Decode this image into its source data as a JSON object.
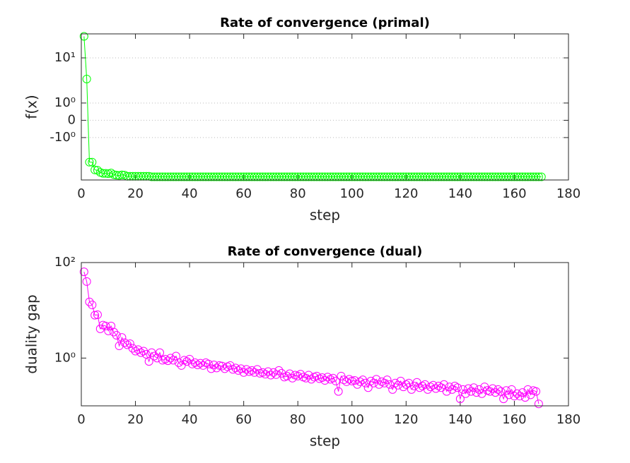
{
  "chart_data": [
    {
      "type": "line",
      "title": "Rate of convergence (primal)",
      "x_label": "step",
      "y_label": "f(x)",
      "x": [
        1,
        2,
        3,
        4,
        5,
        6,
        7,
        8,
        9,
        10,
        11,
        12,
        13,
        14,
        15,
        16,
        17,
        18,
        19,
        20,
        21,
        22,
        23,
        24,
        25,
        26,
        27,
        28,
        29,
        30,
        31,
        32,
        33,
        34,
        35,
        36,
        37,
        38,
        39,
        40,
        41,
        42,
        43,
        44,
        45,
        46,
        47,
        48,
        49,
        50,
        51,
        52,
        53,
        54,
        55,
        56,
        57,
        58,
        59,
        60,
        61,
        62,
        63,
        64,
        65,
        66,
        67,
        68,
        69,
        70,
        71,
        72,
        73,
        74,
        75,
        76,
        77,
        78,
        79,
        80,
        81,
        82,
        83,
        84,
        85,
        86,
        87,
        88,
        89,
        90,
        91,
        92,
        93,
        94,
        95,
        96,
        97,
        98,
        99,
        100,
        101,
        102,
        103,
        104,
        105,
        106,
        107,
        108,
        109,
        110,
        111,
        112,
        113,
        114,
        115,
        116,
        117,
        118,
        119,
        120,
        121,
        122,
        123,
        124,
        125,
        126,
        127,
        128,
        129,
        130,
        131,
        132,
        133,
        134,
        135,
        136,
        137,
        138,
        139,
        140,
        141,
        142,
        143,
        144,
        145,
        146,
        147,
        148,
        149,
        150,
        151,
        152,
        153,
        154,
        155,
        156,
        157,
        158,
        159,
        160,
        161,
        162,
        163,
        164,
        165,
        166,
        167,
        168,
        169,
        170
      ],
      "series": [
        {
          "color": "#00ff00",
          "values": [
            30,
            3.4,
            -3.5,
            -3.5,
            -5.2,
            -5.3,
            -5.9,
            -6.2,
            -6.2,
            -6.3,
            -6.1,
            -6.6,
            -6.8,
            -6.9,
            -6.7,
            -6.8,
            -7.2,
            -7.2,
            -7.2,
            -7.2,
            -7.2,
            -7.2,
            -7.2,
            -7.2,
            -7.2,
            -7.4,
            -7.4,
            -7.4,
            -7.4,
            -7.4,
            -7.4,
            -7.4,
            -7.4,
            -7.4,
            -7.4,
            -7.4,
            -7.4,
            -7.4,
            -7.4,
            -7.4,
            -7.4,
            -7.4,
            -7.4,
            -7.4,
            -7.4,
            -7.4,
            -7.4,
            -7.4,
            -7.4,
            -7.4,
            -7.4,
            -7.4,
            -7.4,
            -7.4,
            -7.4,
            -7.4,
            -7.4,
            -7.4,
            -7.4,
            -7.4,
            -7.4,
            -7.4,
            -7.4,
            -7.4,
            -7.4,
            -7.4,
            -7.4,
            -7.4,
            -7.4,
            -7.4,
            -7.4,
            -7.4,
            -7.4,
            -7.4,
            -7.4,
            -7.4,
            -7.4,
            -7.4,
            -7.4,
            -7.4,
            -7.4,
            -7.4,
            -7.4,
            -7.4,
            -7.4,
            -7.4,
            -7.4,
            -7.4,
            -7.4,
            -7.4,
            -7.4,
            -7.4,
            -7.4,
            -7.4,
            -7.4,
            -7.4,
            -7.4,
            -7.4,
            -7.4,
            -7.4,
            -7.4,
            -7.4,
            -7.4,
            -7.4,
            -7.4,
            -7.4,
            -7.4,
            -7.4,
            -7.4,
            -7.4,
            -7.4,
            -7.4,
            -7.4,
            -7.4,
            -7.4,
            -7.4,
            -7.4,
            -7.4,
            -7.4,
            -7.4,
            -7.4,
            -7.4,
            -7.4,
            -7.4,
            -7.4,
            -7.4,
            -7.4,
            -7.4,
            -7.4,
            -7.4,
            -7.4,
            -7.4,
            -7.4,
            -7.4,
            -7.4,
            -7.4,
            -7.4,
            -7.4,
            -7.4,
            -7.4,
            -7.4,
            -7.4,
            -7.4,
            -7.4,
            -7.4,
            -7.4,
            -7.4,
            -7.4,
            -7.4,
            -7.4,
            -7.4,
            -7.4,
            -7.4,
            -7.4,
            -7.4,
            -7.4,
            -7.4,
            -7.4,
            -7.4,
            -7.4,
            -7.4,
            -7.4,
            -7.4,
            -7.4,
            -7.4,
            -7.4,
            -7.4,
            -7.4,
            -7.4,
            -7.4
          ]
        }
      ],
      "xlim": [
        0,
        180
      ],
      "xticks": [
        0,
        20,
        40,
        60,
        80,
        100,
        120,
        140,
        160,
        180
      ],
      "yscale": "symlog",
      "ylim": [
        -8.7,
        34
      ],
      "yticks": [
        {
          "value": -1,
          "label": "-10⁰"
        },
        0,
        {
          "value": 1,
          "label": "10⁰"
        },
        {
          "value": 10,
          "label": "10¹"
        }
      ],
      "grid": true
    },
    {
      "type": "line",
      "title": "Rate of convergence (dual)",
      "x_label": "step",
      "y_label": "duality gap",
      "x": [
        1,
        2,
        3,
        4,
        5,
        6,
        7,
        8,
        9,
        10,
        11,
        12,
        13,
        14,
        15,
        16,
        17,
        18,
        19,
        20,
        21,
        22,
        23,
        24,
        25,
        26,
        27,
        28,
        29,
        30,
        31,
        32,
        33,
        34,
        35,
        36,
        37,
        38,
        39,
        40,
        41,
        42,
        43,
        44,
        45,
        46,
        47,
        48,
        49,
        50,
        51,
        52,
        53,
        54,
        55,
        56,
        57,
        58,
        59,
        60,
        61,
        62,
        63,
        64,
        65,
        66,
        67,
        68,
        69,
        70,
        71,
        72,
        73,
        74,
        75,
        76,
        77,
        78,
        79,
        80,
        81,
        82,
        83,
        84,
        85,
        86,
        87,
        88,
        89,
        90,
        91,
        92,
        93,
        94,
        95,
        96,
        97,
        98,
        99,
        100,
        101,
        102,
        103,
        104,
        105,
        106,
        107,
        108,
        109,
        110,
        111,
        112,
        113,
        114,
        115,
        116,
        117,
        118,
        119,
        120,
        121,
        122,
        123,
        124,
        125,
        126,
        127,
        128,
        129,
        130,
        131,
        132,
        133,
        134,
        135,
        136,
        137,
        138,
        139,
        140,
        141,
        142,
        143,
        144,
        145,
        146,
        147,
        148,
        149,
        150,
        151,
        152,
        153,
        154,
        155,
        156,
        157,
        158,
        159,
        160,
        161,
        162,
        163,
        164,
        165,
        166,
        167,
        168,
        169
      ],
      "series": [
        {
          "color": "#ff00ff",
          "values": [
            64,
            40,
            15,
            13,
            7.9,
            8.1,
            4.1,
            4.9,
            4.7,
            3.7,
            4.7,
            3.5,
            3.0,
            1.8,
            2.7,
            2.1,
            1.9,
            2.0,
            1.6,
            1.4,
            1.5,
            1.3,
            1.4,
            1.2,
            0.85,
            1.3,
            1.1,
            1.0,
            1.3,
            0.9,
            0.95,
            0.88,
            1.0,
            0.9,
            1.1,
            0.8,
            0.7,
            0.9,
            0.85,
            0.95,
            0.75,
            0.8,
            0.72,
            0.78,
            0.7,
            0.8,
            0.75,
            0.6,
            0.72,
            0.62,
            0.7,
            0.68,
            0.6,
            0.66,
            0.7,
            0.58,
            0.62,
            0.55,
            0.6,
            0.5,
            0.58,
            0.52,
            0.55,
            0.5,
            0.58,
            0.48,
            0.5,
            0.46,
            0.52,
            0.44,
            0.5,
            0.45,
            0.55,
            0.48,
            0.4,
            0.42,
            0.47,
            0.38,
            0.44,
            0.42,
            0.46,
            0.4,
            0.38,
            0.44,
            0.36,
            0.4,
            0.42,
            0.37,
            0.39,
            0.34,
            0.4,
            0.36,
            0.38,
            0.33,
            0.2,
            0.42,
            0.35,
            0.32,
            0.36,
            0.33,
            0.34,
            0.28,
            0.32,
            0.35,
            0.3,
            0.24,
            0.33,
            0.3,
            0.36,
            0.28,
            0.32,
            0.3,
            0.35,
            0.28,
            0.22,
            0.3,
            0.27,
            0.33,
            0.25,
            0.28,
            0.3,
            0.22,
            0.26,
            0.31,
            0.24,
            0.26,
            0.28,
            0.22,
            0.25,
            0.27,
            0.23,
            0.26,
            0.24,
            0.28,
            0.2,
            0.25,
            0.22,
            0.26,
            0.24,
            0.14,
            0.22,
            0.18,
            0.23,
            0.2,
            0.24,
            0.19,
            0.22,
            0.18,
            0.25,
            0.21,
            0.2,
            0.23,
            0.19,
            0.22,
            0.2,
            0.14,
            0.21,
            0.17,
            0.22,
            0.16,
            0.18,
            0.16,
            0.19,
            0.15,
            0.22,
            0.17,
            0.21,
            0.2,
            0.11
          ]
        }
      ],
      "xlim": [
        0,
        180
      ],
      "xticks": [
        0,
        20,
        40,
        60,
        80,
        100,
        120,
        140,
        160,
        180
      ],
      "yscale": "log",
      "ylim": [
        0.1,
        100
      ],
      "yticks": [
        {
          "value": 1,
          "label": "10⁰"
        },
        {
          "value": 100,
          "label": "10²"
        }
      ],
      "grid": false
    }
  ]
}
